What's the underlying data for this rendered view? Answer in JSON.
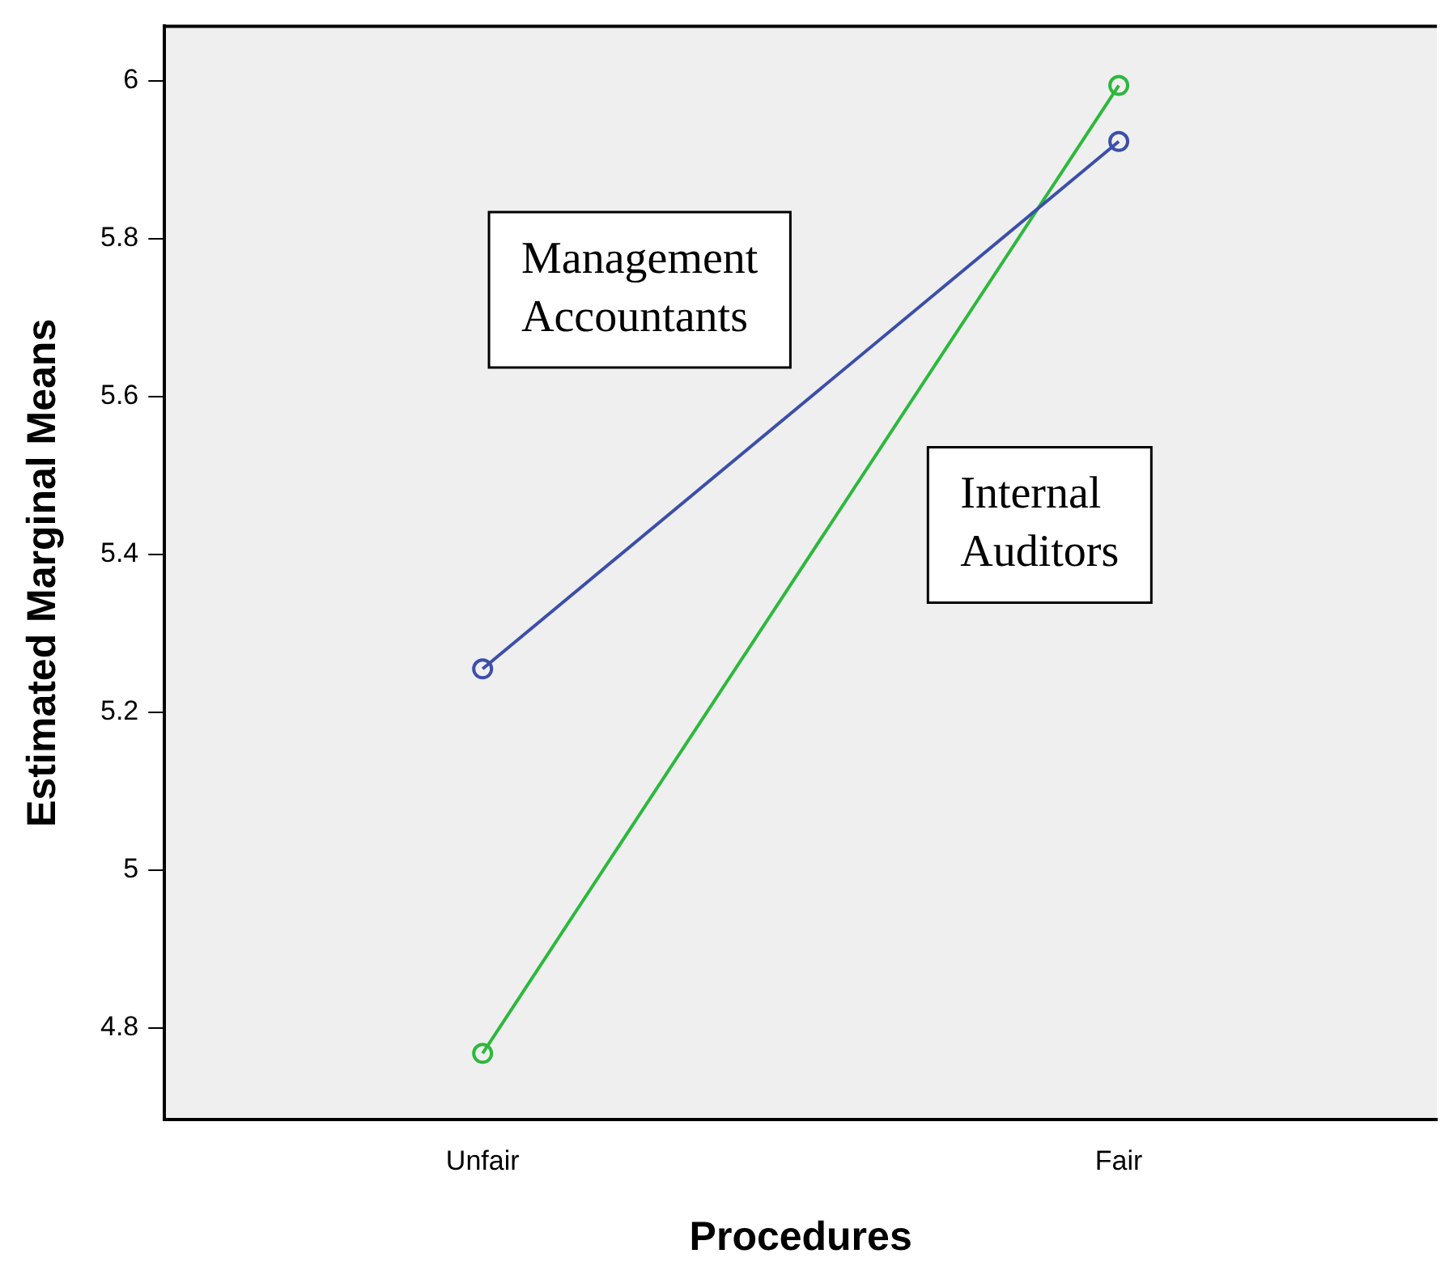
{
  "chart_data": {
    "type": "line",
    "xlabel": "Procedures",
    "ylabel": "Estimated Marginal Means",
    "categories": [
      "Unfair",
      "Fair"
    ],
    "series": [
      {
        "name": "Management Accountants",
        "color": "#3c4fa8",
        "values": [
          5.255,
          5.923
        ]
      },
      {
        "name": "Internal Auditors",
        "color": "#2db83d",
        "values": [
          4.768,
          5.994
        ]
      }
    ],
    "ylim": [
      4.684,
      6.069
    ],
    "yticks": [
      4.8,
      5,
      5.2,
      5.4,
      5.6,
      5.8,
      6
    ],
    "grid": false,
    "legend": false,
    "marker": "circle",
    "line_style": "solid"
  }
}
